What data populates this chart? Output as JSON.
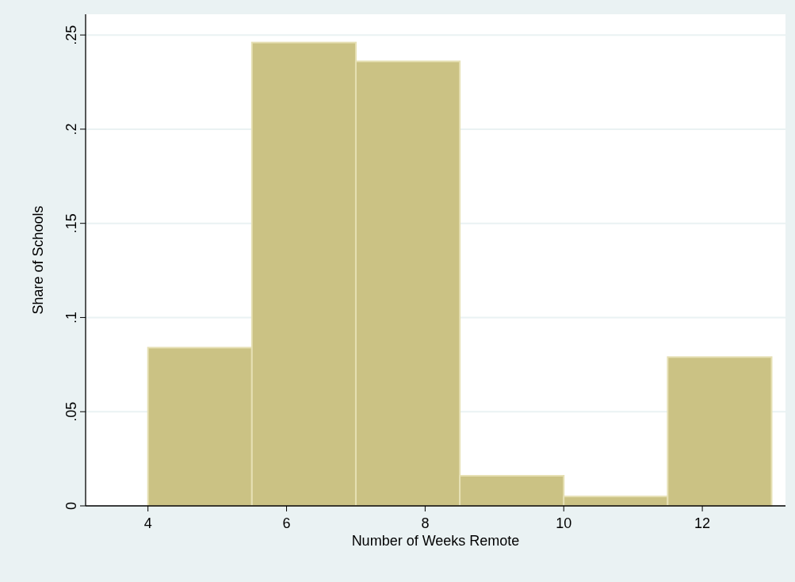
{
  "chart_data": {
    "type": "histogram",
    "xlabel": "Number of Weeks Remote",
    "ylabel": "Share of Schools",
    "bins": [
      4,
      5.5,
      7,
      8.5,
      10,
      11.5,
      13
    ],
    "values": [
      0.084,
      0.246,
      0.236,
      0.016,
      0.005,
      0.079
    ],
    "color": "#cbc284",
    "xlim": [
      3.1,
      13.2
    ],
    "xticks": [
      4,
      6,
      8,
      10,
      12
    ],
    "ylim": [
      0,
      0.261
    ],
    "yticks": [
      {
        "value": 0,
        "label": "0"
      },
      {
        "value": 0.05,
        "label": ".05"
      },
      {
        "value": 0.1,
        "label": ".1"
      },
      {
        "value": 0.15,
        "label": ".15"
      },
      {
        "value": 0.2,
        "label": ".2"
      },
      {
        "value": 0.25,
        "label": ".25"
      }
    ],
    "grid": "y"
  }
}
